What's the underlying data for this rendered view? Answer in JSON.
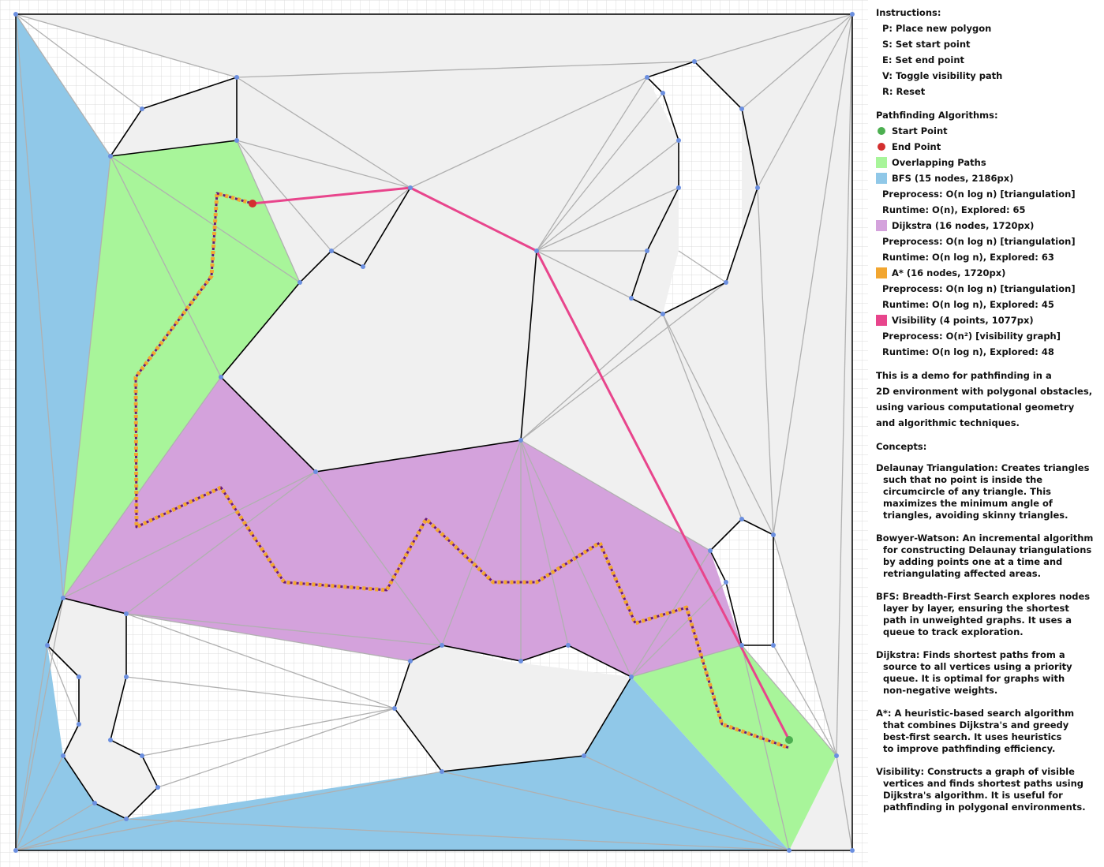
{
  "instructions": {
    "title": "Instructions:",
    "items": [
      "P: Place new polygon",
      "S: Set start point",
      "E: Set end point",
      "V: Toggle visibility path",
      "R: Reset"
    ]
  },
  "algorithms": {
    "title": "Pathfinding Algorithms:",
    "start_label": "Start Point",
    "end_label": "End Point",
    "overlap_label": "Overlapping Paths",
    "bfs": {
      "label": "BFS (15 nodes, 2186px)",
      "preprocess": "Preprocess: O(n log n) [triangulation]",
      "runtime": "Runtime: O(n), Explored: 65"
    },
    "dijkstra": {
      "label": "Dijkstra (16 nodes, 1720px)",
      "preprocess": "Preprocess: O(n log n) [triangulation]",
      "runtime": "Runtime: O(n log n), Explored: 63"
    },
    "astar": {
      "label": "A* (16 nodes, 1720px)",
      "preprocess": "Preprocess: O(n log n) [triangulation]",
      "runtime": "Runtime: O(n log n), Explored: 45"
    },
    "visibility": {
      "label": "Visibility (4 points, 1077px)",
      "preprocess": "Preprocess: O(n²) [visibility graph]",
      "runtime": "Runtime: O(n log n), Explored: 48"
    }
  },
  "description": [
    "This is a demo for pathfinding in a",
    "2D environment with polygonal obstacles,",
    "using various computational geometry",
    "and algorithmic techniques."
  ],
  "concepts": {
    "title": "Concepts:",
    "items": [
      [
        "Delaunay Triangulation: Creates triangles",
        "such that no point is inside the",
        "circumcircle of any triangle. This",
        "maximizes the minimum angle of",
        "triangles, avoiding skinny triangles."
      ],
      [
        "Bowyer-Watson: An incremental algorithm",
        "for constructing Delaunay triangulations",
        "by adding points one at a time and",
        "retriangulating affected areas."
      ],
      [
        "BFS: Breadth-First Search explores nodes",
        "layer by layer, ensuring the shortest",
        "path in unweighted graphs. It uses a",
        "queue to track exploration."
      ],
      [
        "Dijkstra: Finds shortest paths from a",
        "source to all vertices using a priority",
        "queue. It is optimal for graphs with",
        "non-negative weights."
      ],
      [
        "A*: A heuristic-based search algorithm",
        "that combines Dijkstra's and greedy",
        "best-first search. It uses heuristics",
        "to improve pathfinding efficiency."
      ],
      [
        "Visibility: Constructs a graph of visible",
        "vertices and finds shortest paths using",
        "Dijkstra's algorithm. It is useful for",
        "pathfinding in polygonal environments."
      ]
    ]
  },
  "colors": {
    "start": "#4caf50",
    "end": "#d32f2f",
    "overlap": "#a8f59a",
    "bfs": "#90c8e8",
    "dijkstra": "#d4a2dc",
    "astar": "#f2a630",
    "visibility": "#e8458c",
    "triangle_fill": "#f0f0f0",
    "edge": "#b0b0b0",
    "obstacle": "#000000",
    "vertex": "#6b8fe0",
    "grid": "#dddddd"
  }
}
